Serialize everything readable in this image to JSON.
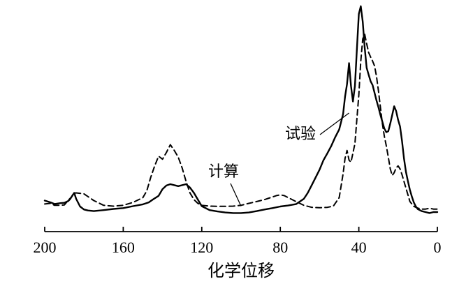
{
  "chart_data": {
    "type": "line",
    "xlabel": "化学位移",
    "ylabel": "",
    "title": "",
    "xlim": [
      200,
      0
    ],
    "ylim": [
      0,
      100
    ],
    "x_reversed": true,
    "x_ticks": [
      200,
      160,
      120,
      80,
      40,
      0
    ],
    "grid": false,
    "series": [
      {
        "name": "试验",
        "style": "solid",
        "x": [
          200,
          197,
          195,
          192,
          190,
          188,
          187,
          186,
          185,
          184,
          182,
          180,
          178,
          175,
          170,
          165,
          160,
          155,
          150,
          147,
          145,
          142,
          140,
          138,
          136,
          134,
          132,
          130,
          128,
          126,
          124,
          122,
          120,
          116,
          112,
          108,
          104,
          100,
          96,
          92,
          88,
          84,
          80,
          76,
          72,
          68,
          66,
          64,
          62,
          60,
          58,
          56,
          54,
          52,
          50,
          48,
          47,
          46,
          45,
          44,
          43,
          42,
          41,
          40,
          39,
          38,
          37,
          36,
          35,
          34,
          33,
          32,
          31,
          30,
          29,
          28,
          27,
          26,
          25,
          24,
          23,
          22,
          21,
          20,
          19,
          18,
          17,
          16,
          15,
          14,
          13,
          12,
          11,
          10,
          8,
          6,
          4,
          2,
          0
        ],
        "y": [
          5.8,
          4.9,
          4.1,
          4.5,
          4.7,
          5.6,
          6.6,
          8.2,
          9.7,
          6.7,
          2.8,
          1.3,
          0.8,
          0.5,
          1.0,
          1.6,
          2.0,
          3.0,
          3.9,
          4.9,
          6.3,
          8.2,
          11.6,
          13.4,
          14.1,
          13.6,
          13.1,
          13.6,
          14.1,
          12.4,
          9.7,
          6.3,
          3.0,
          1.0,
          0.3,
          -0.2,
          -0.5,
          -0.5,
          -0.2,
          0.5,
          1.3,
          2.0,
          2.8,
          3.3,
          4.0,
          6.7,
          9.7,
          13.6,
          17.5,
          21.4,
          26.2,
          29.7,
          33.5,
          37.9,
          41.7,
          49.5,
          58.3,
          64.6,
          75.2,
          63.6,
          55.8,
          63.6,
          82.0,
          100.0,
          103.9,
          96.1,
          83.0,
          72.8,
          69.4,
          66.0,
          64.1,
          60.2,
          56.3,
          52.9,
          49.0,
          45.6,
          42.2,
          40.3,
          40.8,
          44.7,
          49.0,
          53.4,
          51.0,
          46.6,
          43.2,
          35.9,
          27.2,
          20.4,
          15.5,
          11.2,
          7.8,
          4.9,
          2.9,
          1.5,
          0.5,
          0.0,
          -0.5,
          0.0,
          0.0
        ]
      },
      {
        "name": "计算",
        "style": "dashed",
        "x": [
          200,
          197,
          195,
          192,
          190,
          188,
          186,
          185,
          184,
          180,
          175,
          170,
          165,
          160,
          155,
          150,
          148,
          146,
          144,
          142,
          140,
          138,
          136,
          134,
          132,
          130,
          128,
          126,
          124,
          122,
          120,
          116,
          112,
          108,
          104,
          100,
          96,
          92,
          88,
          85,
          82,
          80,
          78,
          75,
          72,
          68,
          64,
          60,
          56,
          53,
          50,
          48,
          47,
          46,
          45,
          44,
          42,
          40,
          39,
          38,
          37,
          36,
          35,
          34,
          33,
          32,
          31,
          30,
          29,
          28,
          27,
          26,
          25,
          24,
          23,
          22,
          21,
          20,
          19,
          18,
          17,
          16,
          15,
          14,
          12,
          10,
          8,
          6,
          4,
          2,
          0
        ],
        "y": [
          4.1,
          4.4,
          3.4,
          3.4,
          3.6,
          6.0,
          8.0,
          9.5,
          9.7,
          9.2,
          5.8,
          3.4,
          3.0,
          3.4,
          4.9,
          7.3,
          10.7,
          17.5,
          23.3,
          28.2,
          26.7,
          30.1,
          34.0,
          31.1,
          27.7,
          22.3,
          15.5,
          9.7,
          6.3,
          4.4,
          3.4,
          3.0,
          2.9,
          2.9,
          3.0,
          3.4,
          4.4,
          5.3,
          6.3,
          7.3,
          8.3,
          8.7,
          8.3,
          6.8,
          5.3,
          3.4,
          2.4,
          2.2,
          2.4,
          3.0,
          7.3,
          19.4,
          27.2,
          31.1,
          26.2,
          25.2,
          34.5,
          59.2,
          76.2,
          87.4,
          89.8,
          85.0,
          80.6,
          78.2,
          76.2,
          73.8,
          68.4,
          61.2,
          52.9,
          44.7,
          38.3,
          33.5,
          27.7,
          21.8,
          18.5,
          19.9,
          22.3,
          23.3,
          21.8,
          18.9,
          15.5,
          12.1,
          8.7,
          5.3,
          2.9,
          2.0,
          1.5,
          1.5,
          1.9,
          1.5,
          1.5
        ]
      }
    ],
    "annotations": [
      {
        "text": "试验",
        "series": "试验",
        "x": 45,
        "y": 50
      },
      {
        "text": "计算",
        "series": "计算",
        "x": 100,
        "y": 3
      }
    ]
  }
}
